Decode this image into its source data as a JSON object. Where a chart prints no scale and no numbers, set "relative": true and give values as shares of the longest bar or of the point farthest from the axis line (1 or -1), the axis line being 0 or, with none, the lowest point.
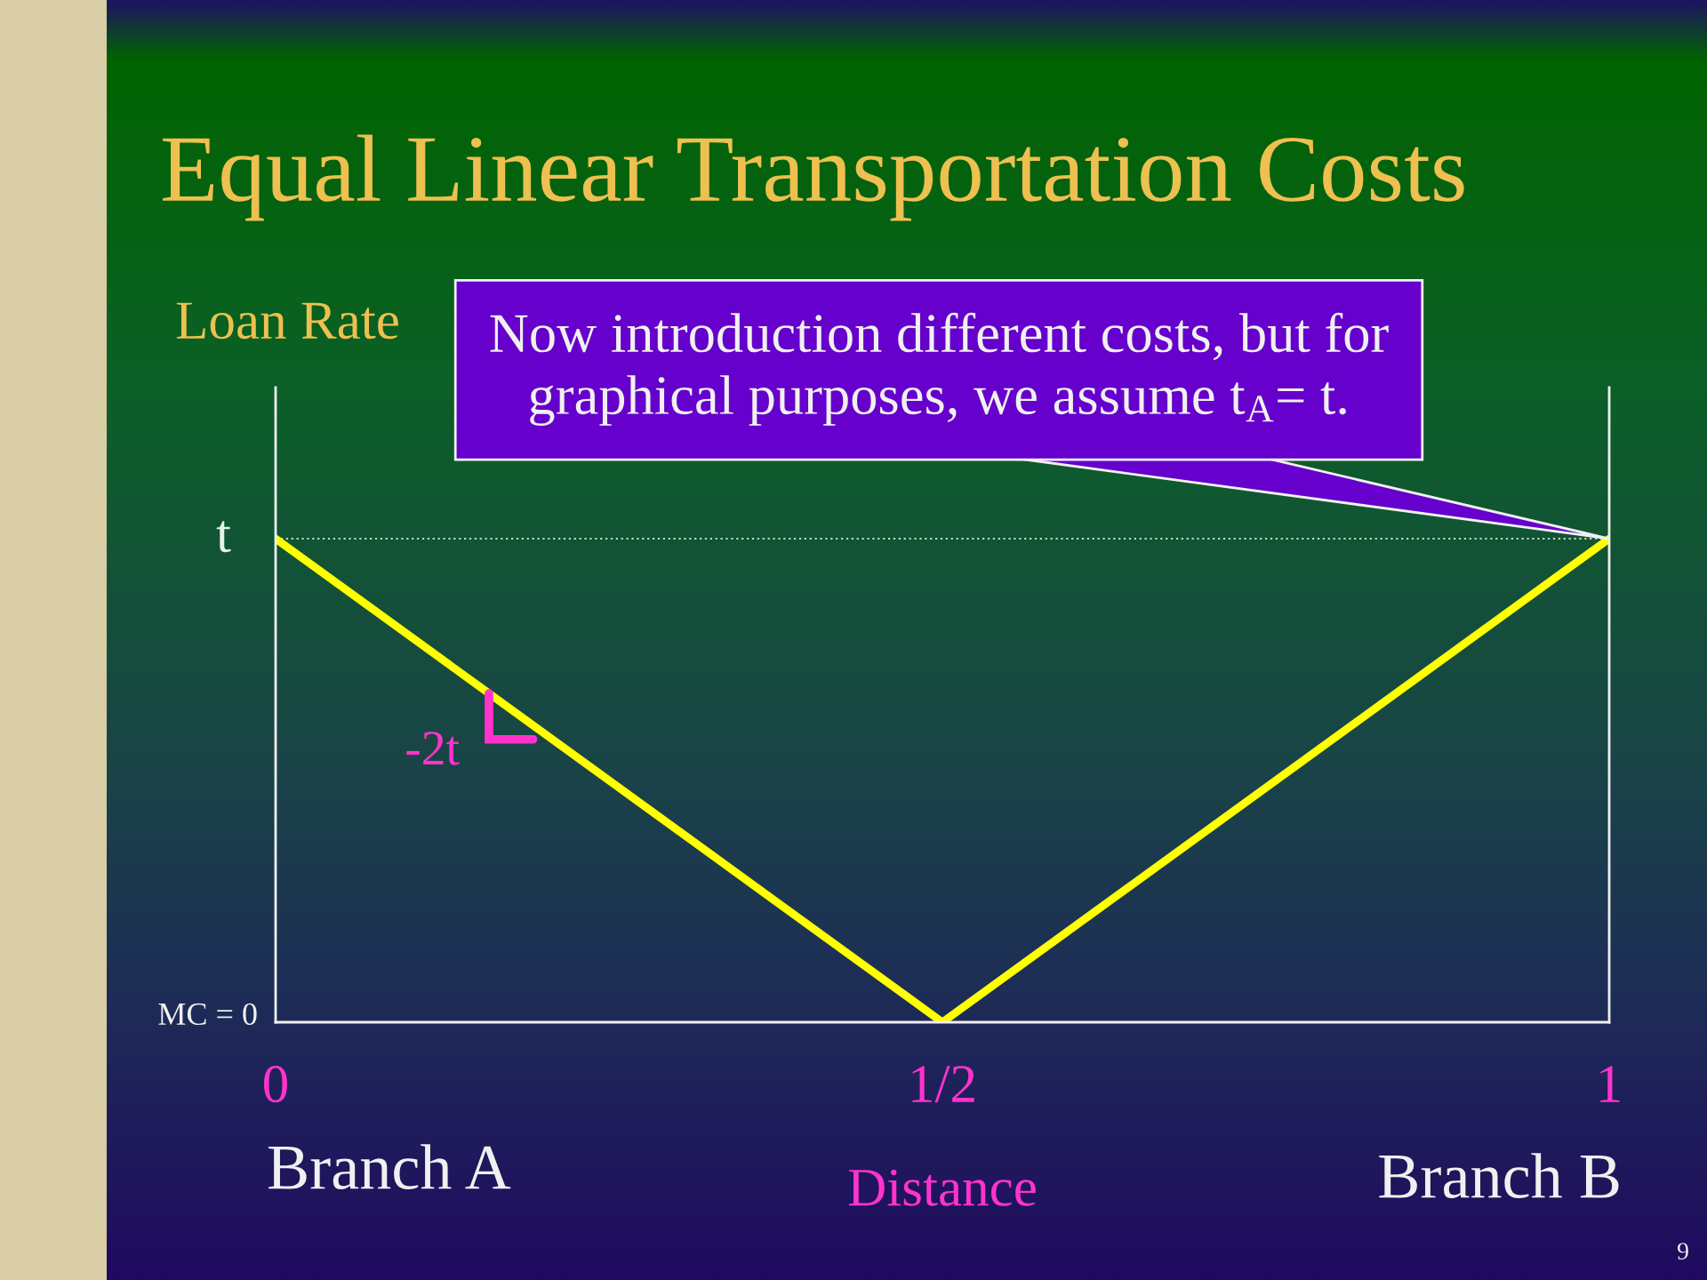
{
  "chart_data": {
    "type": "line",
    "title": "Equal Linear Transportation Costs",
    "xlabel": "Distance",
    "ylabel": "Loan Rate",
    "relative": true,
    "x": [
      0,
      0.5,
      1
    ],
    "series": [
      {
        "color": "#ffff00",
        "values": [
          1,
          0,
          1
        ]
      }
    ],
    "xlim": [
      0,
      1
    ],
    "xticks": [
      0,
      {
        "value": 0.5,
        "label": "1/2"
      },
      1
    ],
    "ref_lines": [
      {
        "axis": "y",
        "value": 1,
        "color": "#c8d8c8",
        "line_style": "dotted"
      }
    ],
    "line_style": "solid",
    "annotations": [
      {
        "text": "Now introduction different costs, but for\ngraphical purposes, we assume t$_{A}$= t.",
        "x": 1,
        "y": 1
      },
      {
        "text": "-2t",
        "x": 0.16,
        "y": 0.68
      },
      {
        "text": "t",
        "x": 0,
        "y": 1
      },
      "MC = 0",
      "Branch A",
      "Branch B",
      "9"
    ]
  }
}
